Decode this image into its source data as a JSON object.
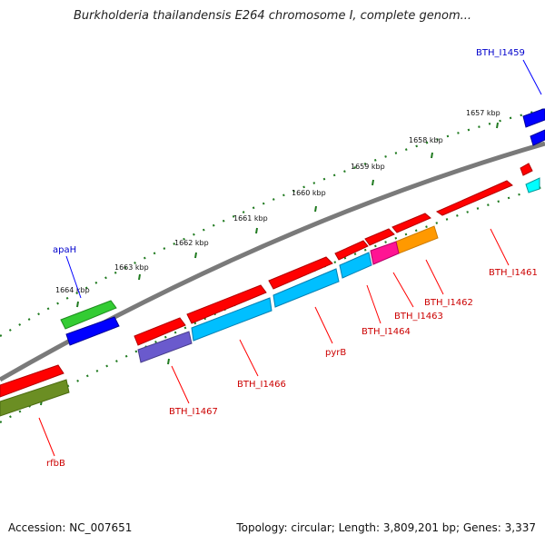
{
  "title": "Burkholderia thailandensis E264 chromosome I, complete genom...",
  "footer": {
    "accession": "Accession: NC_007651",
    "summary": "Topology: circular; Length: 3,809,201 bp; Genes: 3,337"
  },
  "colors": {
    "backbone": "#7a7a7a",
    "tick": "#1f7a1f",
    "forward_label": "#0000cc",
    "reverse_label": "#cc0000",
    "leader_forward": "#0000ff",
    "leader_reverse": "#ff0000"
  },
  "scale_labels": [
    "1664 kbp",
    "1663 kbp",
    "1662 kbp",
    "1661 kbp",
    "1660 kbp",
    "1659 kbp",
    "1658 kbp",
    "1657 kbp"
  ],
  "gene_labels": {
    "bth_i1459": "BTH_I1459",
    "apah": "apaH",
    "bth_i1461": "BTH_I1461",
    "bth_i1462": "BTH_I1462",
    "bth_i1463": "BTH_I1463",
    "bth_i1464": "BTH_I1464",
    "pyrb": "pyrB",
    "bth_i1466": "BTH_I1466",
    "bth_i1467": "BTH_I1467",
    "rfbb": "rfbB"
  },
  "feature_colors": {
    "red": "#ff0000",
    "blue": "#0000ff",
    "green": "#33cc33",
    "cyan": "#00bfff",
    "lightcyan": "#00ffff",
    "magenta": "#ff1493",
    "orange": "#ff9900",
    "purple": "#6a5acd",
    "olive": "#6b8e23"
  }
}
